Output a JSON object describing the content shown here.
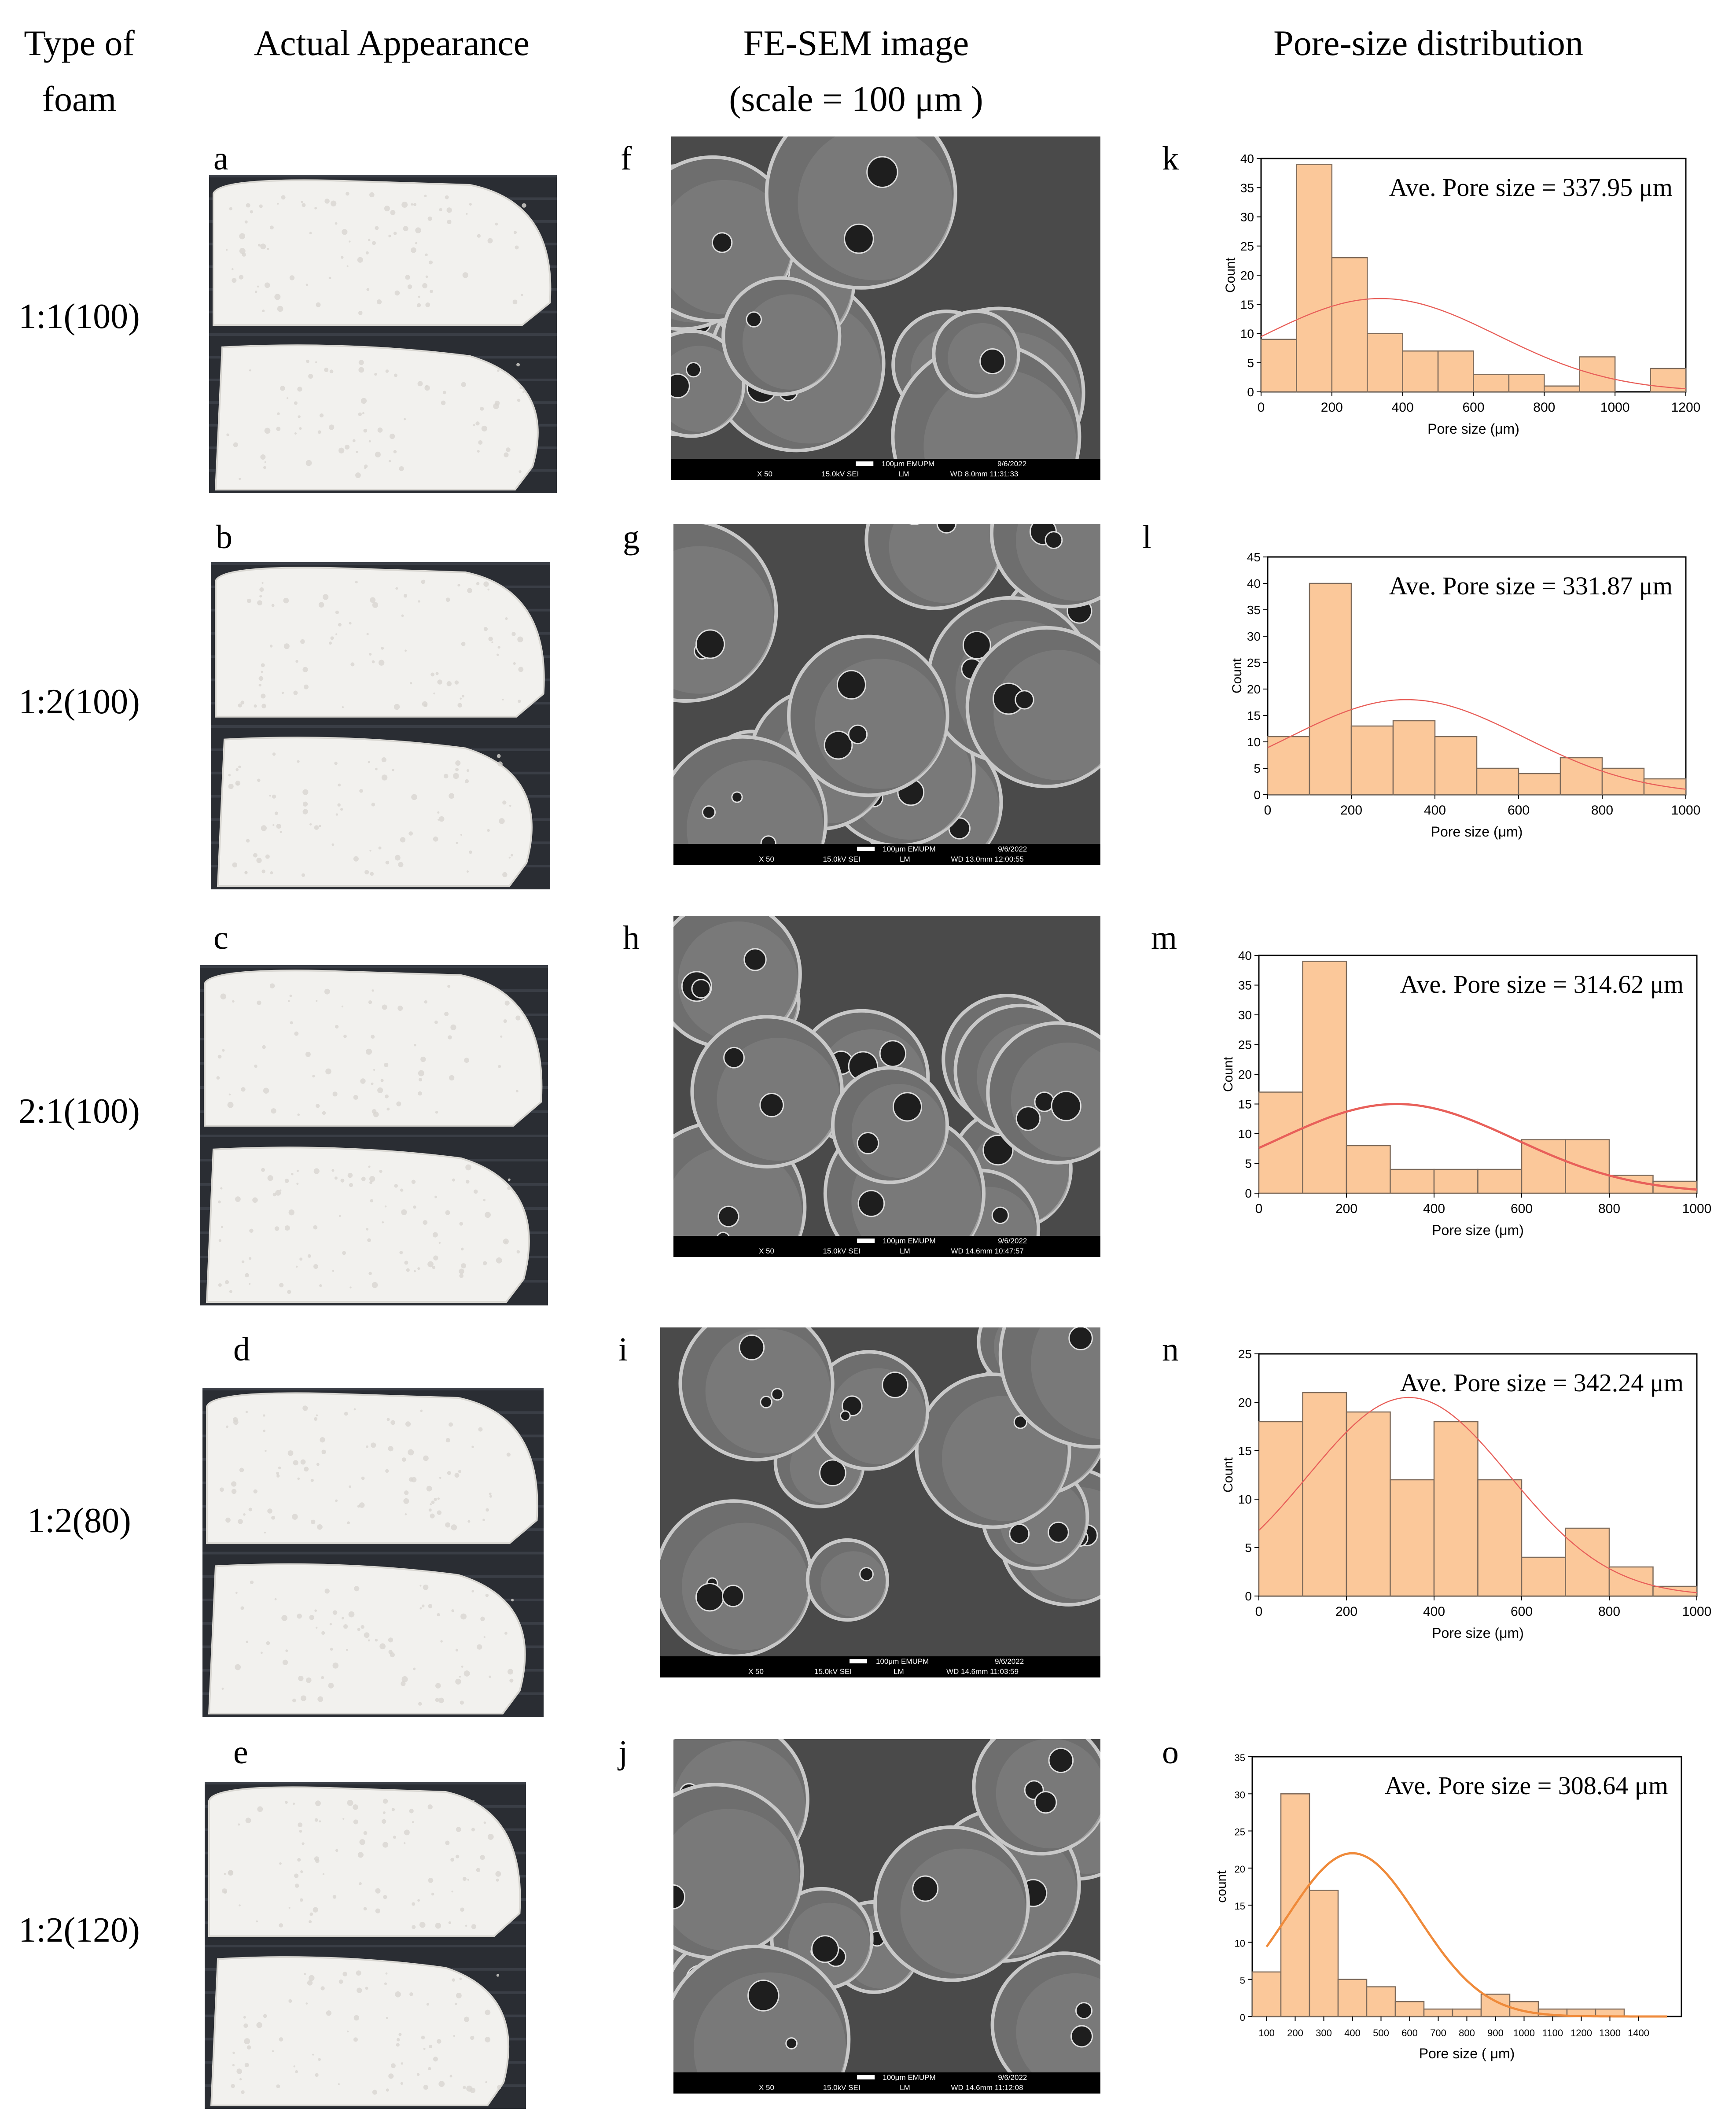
{
  "headers": {
    "type_line1": "Type of",
    "type_line2": "foam",
    "appearance": "Actual Appearance",
    "sem_line1": "FE-SEM image",
    "sem_line2": "(scale = 100 μm )",
    "dist": "Pore-size distribution"
  },
  "rows": [
    {
      "foam": "1:1(100)",
      "photo_letter": "a",
      "sem_letter": "f",
      "chart_letter": "k",
      "sem_bar": {
        "scale": "100μm EMUPM",
        "date": "9/6/2022",
        "mag": "X 50",
        "kv": "15.0kV SEI",
        "mode": "LM",
        "wd": "WD 8.0mm 11:31:33"
      }
    },
    {
      "foam": "1:2(100)",
      "photo_letter": "b",
      "sem_letter": "g",
      "chart_letter": "l",
      "sem_bar": {
        "scale": "100μm EMUPM",
        "date": "9/6/2022",
        "mag": "X 50",
        "kv": "15.0kV SEI",
        "mode": "LM",
        "wd": "WD 13.0mm 12:00:55"
      }
    },
    {
      "foam": "2:1(100)",
      "photo_letter": "c",
      "sem_letter": "h",
      "chart_letter": "m",
      "sem_bar": {
        "scale": "100μm EMUPM",
        "date": "9/6/2022",
        "mag": "X 50",
        "kv": "15.0kV SEI",
        "mode": "LM",
        "wd": "WD 14.6mm 10:47:57"
      }
    },
    {
      "foam": "1:2(80)",
      "photo_letter": "d",
      "sem_letter": "i",
      "chart_letter": "n",
      "sem_bar": {
        "scale": "100μm EMUPM",
        "date": "9/6/2022",
        "mag": "X 50",
        "kv": "15.0kV SEI",
        "mode": "LM",
        "wd": "WD 14.6mm 11:03:59"
      }
    },
    {
      "foam": "1:2(120)",
      "photo_letter": "e",
      "sem_letter": "j",
      "chart_letter": "o",
      "sem_bar": {
        "scale": "100μm EMUPM",
        "date": "9/6/2022",
        "mag": "X 50",
        "kv": "15.0kV SEI",
        "mode": "LM",
        "wd": "WD 14.6mm 11:12:08"
      }
    }
  ],
  "colors": {
    "bar_fill": "#fbc89a",
    "bar_stroke": "#7d6a5a",
    "curve_red": "#e8605a",
    "curve_orange": "#ef8a3a",
    "sem_bg": "#4a4a4a",
    "sem_cell": "#6e6e6e",
    "sem_hole": "#1e1e1e",
    "photo_bg": "#2a2d33",
    "foam": "#f2f1ee"
  },
  "chart_data": [
    {
      "type": "bar",
      "panel": "k",
      "annotation": "Ave. Pore size = 337.95 μm",
      "xlabel": "Pore size (μm)",
      "ylabel": "Count",
      "bin_edges": [
        0,
        100,
        200,
        300,
        400,
        500,
        600,
        700,
        800,
        900,
        1000,
        1100,
        1200
      ],
      "values": [
        9,
        39,
        23,
        10,
        7,
        7,
        3,
        3,
        1,
        6,
        0,
        4
      ],
      "xlim": [
        0,
        1200
      ],
      "ylim": [
        0,
        40
      ],
      "xticks": [
        0,
        200,
        400,
        600,
        800,
        1000,
        1200
      ],
      "yticks": [
        0,
        5,
        10,
        15,
        20,
        25,
        30,
        35,
        40
      ],
      "fit": {
        "mean": 337.95,
        "peak": 16,
        "sd": 330
      },
      "curve_color": "red"
    },
    {
      "type": "bar",
      "panel": "l",
      "annotation": "Ave. Pore size = 331.87 μm",
      "xlabel": "Pore size (μm)",
      "ylabel": "Count",
      "bin_edges": [
        0,
        100,
        200,
        300,
        400,
        500,
        600,
        700,
        800,
        900,
        1000
      ],
      "values": [
        11,
        40,
        13,
        14,
        11,
        5,
        4,
        7,
        5,
        3
      ],
      "xlim": [
        0,
        1000
      ],
      "ylim": [
        0,
        45
      ],
      "xticks": [
        0,
        200,
        400,
        600,
        800,
        1000
      ],
      "yticks": [
        0,
        5,
        10,
        15,
        20,
        25,
        30,
        35,
        40,
        45
      ],
      "fit": {
        "mean": 331.87,
        "peak": 18,
        "sd": 280
      },
      "curve_color": "red"
    },
    {
      "type": "bar",
      "panel": "m",
      "annotation": "Ave. Pore size = 314.62 μm",
      "xlabel": "Pore size (μm)",
      "ylabel": "Count",
      "bin_edges": [
        0,
        100,
        200,
        300,
        400,
        500,
        600,
        700,
        800,
        900,
        1000
      ],
      "values": [
        17,
        39,
        8,
        4,
        4,
        4,
        9,
        9,
        3,
        2
      ],
      "xlim": [
        0,
        1000
      ],
      "ylim": [
        0,
        40
      ],
      "xticks": [
        0,
        200,
        400,
        600,
        800,
        1000
      ],
      "yticks": [
        0,
        5,
        10,
        15,
        20,
        25,
        30,
        35,
        40
      ],
      "fit": {
        "mean": 314.62,
        "peak": 15,
        "sd": 270
      },
      "curve_color": "red"
    },
    {
      "type": "bar",
      "panel": "n",
      "annotation": "Ave. Pore size = 342.24 μm",
      "xlabel": "Pore size (μm)",
      "ylabel": "Count",
      "bin_edges": [
        0,
        100,
        200,
        300,
        400,
        500,
        600,
        700,
        800,
        900,
        1000
      ],
      "values": [
        18,
        21,
        19,
        12,
        18,
        12,
        4,
        7,
        3,
        1
      ],
      "xlim": [
        0,
        1000
      ],
      "ylim": [
        0,
        25
      ],
      "xticks": [
        0,
        200,
        400,
        600,
        800,
        1000
      ],
      "yticks": [
        0,
        5,
        10,
        15,
        20,
        25
      ],
      "fit": {
        "mean": 342.24,
        "peak": 20.5,
        "sd": 230
      },
      "curve_color": "red"
    },
    {
      "type": "bar",
      "panel": "o",
      "annotation": "Ave. Pore size = 308.64 μm",
      "xlabel": "Pore size ( μm)",
      "ylabel": "count",
      "bin_edges": [
        50,
        150,
        250,
        350,
        450,
        550,
        650,
        750,
        850,
        950,
        1050,
        1150,
        1250,
        1350,
        1450
      ],
      "values": [
        6,
        30,
        17,
        5,
        4,
        2,
        1,
        1,
        3,
        2,
        1,
        1,
        1,
        0
      ],
      "xlim": [
        50,
        1550
      ],
      "ylim": [
        0,
        35
      ],
      "xticks": [
        100,
        200,
        300,
        400,
        500,
        600,
        700,
        800,
        900,
        1000,
        1100,
        1200,
        1300,
        1400
      ],
      "yticks": [
        0,
        5,
        10,
        15,
        20,
        25,
        30,
        35
      ],
      "fit": {
        "mean": 400,
        "peak": 22,
        "sd": 230,
        "from": 100,
        "to": 1500
      },
      "curve_color": "orange"
    }
  ]
}
